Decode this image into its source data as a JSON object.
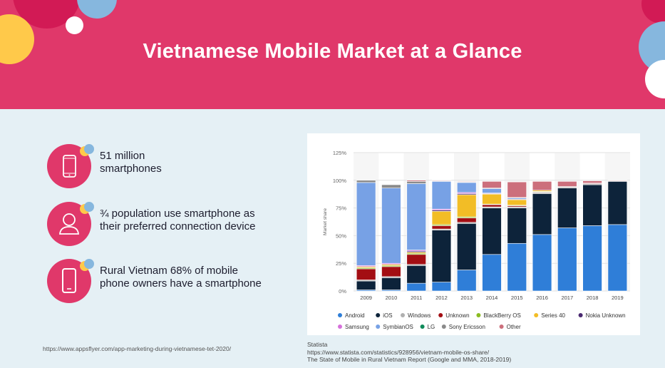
{
  "header": {
    "title": "Vietnamese Mobile Market at a Glance"
  },
  "stats": [
    {
      "icon": "smartphone-icon",
      "line1": "51 million",
      "line2": "smartphones"
    },
    {
      "icon": "person-icon",
      "line1": "¾ population use smartphone as",
      "line2": "their preferred connection device"
    },
    {
      "icon": "mobile-phone-icon",
      "line1": "Rural Vietnam 68% of mobile",
      "line2": "phone owners have a smartphone"
    }
  ],
  "sources": {
    "left": "https://www.appsflyer.com/app-marketing-during-vietnamese-tet-2020/",
    "right_line1": "Statista",
    "right_line2": "https://www.statista.com/statistics/928956/vietnam-mobile-os-share/",
    "right_line3": "The State of Mobile in Rural Vietnam Report (Google and MMA, 2018-2019)"
  },
  "colors": {
    "header": "#e0386a",
    "accent_yellow": "#ffc94a",
    "accent_blue": "#86b7de"
  },
  "chart_data": {
    "type": "bar",
    "stacked": true,
    "categories": [
      "2009",
      "2010",
      "2011",
      "2012",
      "2013",
      "2014",
      "2015",
      "2016",
      "2017",
      "2018",
      "2019"
    ],
    "ylabel": "Market share",
    "ylim": [
      0,
      125
    ],
    "yticks": [
      "0%",
      "25%",
      "50%",
      "75%",
      "100%",
      "125%"
    ],
    "grid": true,
    "legend_position": "bottom",
    "series": [
      {
        "name": "Android",
        "color": "#2f7ed8",
        "values": [
          1,
          1,
          7,
          8,
          19,
          33,
          43,
          51,
          57,
          59,
          60
        ]
      },
      {
        "name": "iOS",
        "color": "#0d233a",
        "values": [
          8,
          11,
          16,
          47,
          42,
          42,
          32,
          37,
          36,
          37,
          39
        ]
      },
      {
        "name": "Windows",
        "color": "#b0b0b0",
        "values": [
          1,
          1,
          1,
          1,
          1,
          1,
          1,
          1,
          1,
          1,
          0.5
        ]
      },
      {
        "name": "Unknown",
        "color": "#a30e13",
        "values": [
          10,
          9,
          9,
          3,
          4,
          2,
          1,
          0.5,
          0.5,
          0.5,
          0
        ]
      },
      {
        "name": "BlackBerry OS",
        "color": "#8bbc21",
        "values": [
          1,
          1,
          1,
          1,
          1,
          0.5,
          0.5,
          0.5,
          0,
          0,
          0
        ]
      },
      {
        "name": "Series 40",
        "color": "#f2bd26",
        "values": [
          1,
          1,
          1,
          12,
          20,
          9,
          5,
          1,
          0,
          0,
          0
        ]
      },
      {
        "name": "Nokia Unknown",
        "color": "#492970",
        "values": [
          0,
          0,
          1,
          1,
          1,
          0.5,
          0.5,
          0,
          0,
          0,
          0
        ]
      },
      {
        "name": "Samsung",
        "color": "#d670db",
        "values": [
          1,
          1,
          1,
          1,
          1,
          0.5,
          0,
          0,
          0,
          0,
          0
        ]
      },
      {
        "name": "SymbianOS",
        "color": "#77a1e5",
        "values": [
          75,
          68,
          60,
          25,
          9,
          4,
          1,
          0,
          0,
          0,
          0
        ]
      },
      {
        "name": "LG",
        "color": "#0f8b5a",
        "values": [
          0,
          0,
          0,
          0,
          0,
          0,
          0,
          0,
          0,
          0,
          0
        ]
      },
      {
        "name": "Sony Ericsson",
        "color": "#8a8a8a",
        "values": [
          2,
          3,
          2,
          0.5,
          0.5,
          0.5,
          0.5,
          0,
          0,
          0,
          0
        ]
      },
      {
        "name": "Other",
        "color": "#cc6f7c",
        "values": [
          0,
          0,
          1,
          0.5,
          0.5,
          6,
          14,
          8,
          4.5,
          2,
          0.5
        ]
      }
    ]
  }
}
